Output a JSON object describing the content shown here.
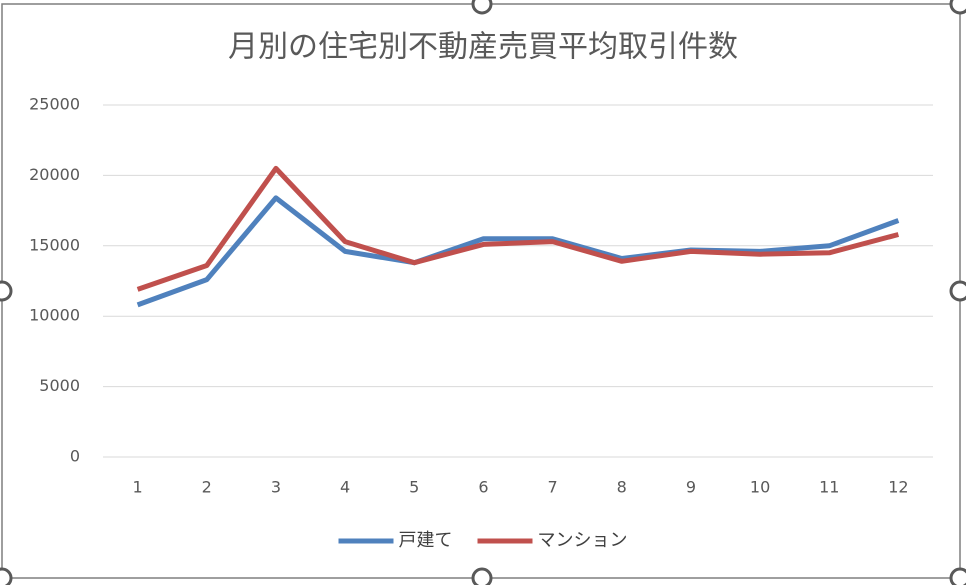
{
  "chart_data": {
    "type": "line",
    "title": "月別の住宅別不動産売買平均取引件数",
    "categories": [
      "1",
      "2",
      "3",
      "4",
      "5",
      "6",
      "7",
      "8",
      "9",
      "10",
      "11",
      "12"
    ],
    "series": [
      {
        "name": "戸建て",
        "color": "#4f81bd",
        "values": [
          10800,
          12600,
          18400,
          14600,
          13800,
          15500,
          15500,
          14100,
          14700,
          14600,
          15000,
          16800
        ]
      },
      {
        "name": "マンション",
        "color": "#c0504d",
        "values": [
          11900,
          13600,
          20500,
          15300,
          13800,
          15100,
          15300,
          13900,
          14600,
          14400,
          14500,
          15800
        ]
      }
    ],
    "ylim": [
      0,
      25000
    ],
    "yticks": [
      0,
      5000,
      10000,
      15000,
      20000,
      25000
    ],
    "grid": true,
    "legend": "bottom"
  }
}
